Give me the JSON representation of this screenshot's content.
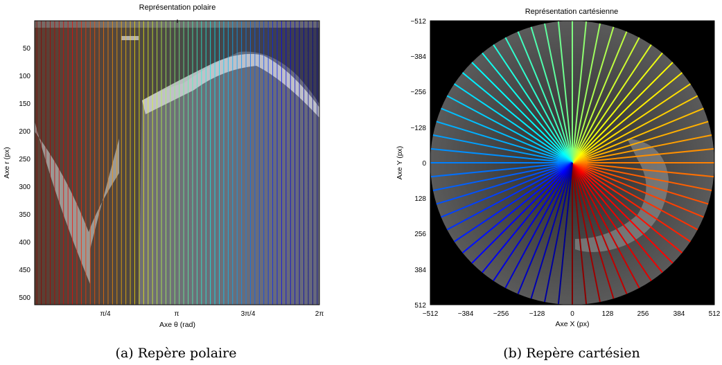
{
  "panels": [
    {
      "id": "a",
      "title": "Représentation polaire",
      "xlabel": "Axe θ (rad)",
      "ylabel": "Axe r (px)",
      "xticks": [
        "π/4",
        "π",
        "3π/4",
        "2π"
      ],
      "yticks": [
        "50",
        "100",
        "150",
        "200",
        "250",
        "300",
        "350",
        "400",
        "450",
        "500"
      ],
      "caption": "(a) Repère polaire"
    },
    {
      "id": "b",
      "title": "Représentation cartésienne",
      "xlabel": "Axe X (px)",
      "ylabel": "Axe Y (px)",
      "xticks": [
        "−512",
        "−384",
        "−256",
        "−128",
        "0",
        "128",
        "256",
        "384",
        "512"
      ],
      "yticks": [
        "−512",
        "−384",
        "−256",
        "−128",
        "0",
        "128",
        "256",
        "384",
        "512"
      ],
      "caption": "(b) Repère cartésien"
    }
  ],
  "colors": {
    "polar_bg": "#3a3a3a",
    "cart_bg": "#000000",
    "ray_palette": "jet"
  }
}
